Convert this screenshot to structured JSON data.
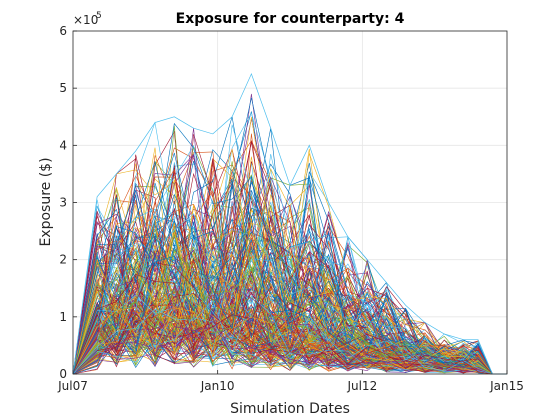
{
  "chart_data": {
    "type": "line",
    "title": "Exposure for counterparty: 4",
    "xlabel": "Simulation Dates",
    "ylabel": "Exposure ($)",
    "x_ticks": [
      "Jul07",
      "Jan10",
      "Jul12",
      "Jan15"
    ],
    "y_ticks": [
      "0",
      "1",
      "2",
      "3",
      "4",
      "5",
      "6"
    ],
    "y_exponent_label": "×10",
    "y_exponent": "5",
    "xlim": [
      "2007-07",
      "2015-01"
    ],
    "ylim": [
      0,
      600000
    ],
    "grid": true,
    "x_dates": [
      "2007-07",
      "2007-12",
      "2008-04",
      "2008-08",
      "2008-12",
      "2009-04",
      "2009-08",
      "2009-12",
      "2010-04",
      "2010-08",
      "2010-12",
      "2011-04",
      "2011-08",
      "2011-12",
      "2012-04",
      "2012-08",
      "2012-12",
      "2013-04",
      "2013-08",
      "2013-12",
      "2014-04",
      "2014-07",
      "2014-10",
      "2015-01"
    ],
    "envelope_max": [
      0,
      310000,
      350000,
      390000,
      440000,
      450000,
      430000,
      420000,
      450000,
      525000,
      430000,
      330000,
      400000,
      300000,
      240000,
      200000,
      160000,
      120000,
      90000,
      70000,
      60000,
      60000,
      0,
      0
    ],
    "envelope_median": [
      0,
      60000,
      75000,
      85000,
      90000,
      85000,
      80000,
      75000,
      70000,
      60000,
      55000,
      50000,
      45000,
      38000,
      32000,
      28000,
      24000,
      20000,
      16000,
      12000,
      10000,
      10000,
      0,
      0
    ],
    "simulated_paths": 1000
  },
  "colors": {
    "series_cycle": [
      "#0072BD",
      "#D95319",
      "#EDB120",
      "#7E2F8E",
      "#77AC30",
      "#4DBEEE",
      "#A2142F"
    ],
    "axis": "#262626",
    "grid": "#e6e6e6"
  }
}
